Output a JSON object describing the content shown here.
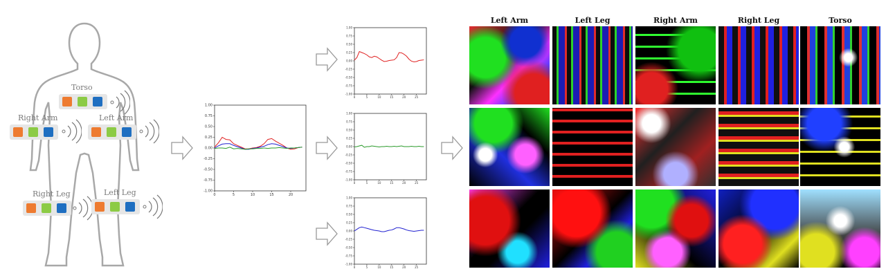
{
  "body_diagram": {
    "sensors": [
      {
        "name": "torso",
        "label": "Torso"
      },
      {
        "name": "right-arm",
        "label": "Right Arm"
      },
      {
        "name": "left-arm",
        "label": "Left Arm"
      },
      {
        "name": "right-leg",
        "label": "Right Leg"
      },
      {
        "name": "left-leg",
        "label": "Left Leg"
      }
    ],
    "channel_colors": [
      "#ee7b30",
      "#8ccb45",
      "#1f6fc1"
    ]
  },
  "combined_plot": {
    "y_ticks": [
      "1.00",
      "0.75",
      "0.50",
      "0.25",
      "0.00",
      "-0.25",
      "-0.50",
      "-0.75",
      "-1.00"
    ],
    "x_ticks": [
      "0",
      "5",
      "10",
      "15",
      "20"
    ]
  },
  "axis_plots": {
    "y_ticks": [
      "1.00",
      "0.75",
      "0.50",
      "0.25",
      "0.00",
      "-0.25",
      "-0.50",
      "-0.75",
      "-1.00"
    ],
    "x_ticks": [
      "0",
      "5",
      "10",
      "15",
      "20",
      "25"
    ]
  },
  "chart_data": [
    {
      "type": "line",
      "x": [
        0,
        1,
        2,
        3,
        4,
        5,
        6,
        7,
        8,
        9,
        10,
        11,
        12,
        13,
        14,
        15,
        16,
        17,
        18,
        19,
        20,
        21,
        22,
        23
      ],
      "ylim": [
        -1,
        1
      ],
      "xlim": [
        0,
        24
      ],
      "series": [
        {
          "color": "#e02020",
          "values": [
            0.02,
            0.12,
            0.25,
            0.2,
            0.19,
            0.1,
            0.06,
            0.02,
            -0.02,
            -0.02,
            0.0,
            0.01,
            0.04,
            0.1,
            0.2,
            0.22,
            0.16,
            0.11,
            0.06,
            0.0,
            -0.03,
            -0.02,
            0.01,
            0.02
          ]
        },
        {
          "color": "#2020d0",
          "values": [
            0.0,
            0.05,
            0.09,
            0.1,
            0.1,
            0.06,
            0.03,
            0.0,
            -0.03,
            -0.03,
            -0.01,
            0.0,
            0.02,
            0.04,
            0.08,
            0.1,
            0.09,
            0.06,
            0.03,
            0.0,
            -0.01,
            0.0,
            0.01,
            0.02
          ]
        },
        {
          "color": "#2a9a2a",
          "values": [
            -0.01,
            0.0,
            0.0,
            -0.01,
            0.02,
            -0.02,
            -0.01,
            -0.02,
            -0.03,
            -0.02,
            -0.02,
            -0.01,
            -0.01,
            0.0,
            -0.01,
            0.0,
            0.0,
            0.01,
            0.0,
            -0.01,
            0.0,
            0.0,
            0.01,
            0.02
          ]
        }
      ]
    },
    {
      "type": "line",
      "x": [
        0,
        1,
        2,
        3,
        4,
        5,
        6,
        7,
        8,
        9,
        10,
        11,
        12,
        13,
        14,
        15,
        16,
        17,
        18,
        19,
        20,
        21,
        22,
        23,
        24,
        25,
        26,
        27,
        28
      ],
      "ylim": [
        -1,
        1
      ],
      "xlim": [
        0,
        29
      ],
      "series": [
        {
          "color": "#e02020",
          "values": [
            0.02,
            0.1,
            0.28,
            0.25,
            0.22,
            0.18,
            0.12,
            0.1,
            0.14,
            0.12,
            0.07,
            0.02,
            -0.02,
            -0.01,
            0.01,
            0.02,
            0.03,
            0.1,
            0.25,
            0.24,
            0.2,
            0.14,
            0.05,
            -0.01,
            -0.03,
            -0.02,
            0.01,
            0.02,
            0.03
          ]
        }
      ]
    },
    {
      "type": "line",
      "x": [
        0,
        1,
        2,
        3,
        4,
        5,
        6,
        7,
        8,
        9,
        10,
        11,
        12,
        13,
        14,
        15,
        16,
        17,
        18,
        19,
        20,
        21,
        22,
        23,
        24,
        25,
        26,
        27,
        28
      ],
      "ylim": [
        -1,
        1
      ],
      "xlim": [
        0,
        29
      ],
      "series": [
        {
          "color": "#2a9a2a",
          "values": [
            -0.01,
            0.0,
            0.02,
            0.04,
            -0.02,
            0.0,
            0.0,
            0.02,
            0.01,
            0.0,
            -0.01,
            0.0,
            0.0,
            0.01,
            0.0,
            0.0,
            0.01,
            0.0,
            0.01,
            0.02,
            0.0,
            0.0,
            0.0,
            0.01,
            0.0,
            0.0,
            0.01,
            0.0,
            0.0
          ]
        }
      ]
    },
    {
      "type": "line",
      "x": [
        0,
        1,
        2,
        3,
        4,
        5,
        6,
        7,
        8,
        9,
        10,
        11,
        12,
        13,
        14,
        15,
        16,
        17,
        18,
        19,
        20,
        21,
        22,
        23,
        24,
        25,
        26,
        27,
        28
      ],
      "ylim": [
        -1,
        1
      ],
      "xlim": [
        0,
        29
      ],
      "series": [
        {
          "color": "#2020d0",
          "values": [
            0.0,
            0.05,
            0.1,
            0.12,
            0.1,
            0.08,
            0.06,
            0.04,
            0.02,
            0.01,
            0.0,
            -0.02,
            -0.02,
            0.0,
            0.02,
            0.03,
            0.06,
            0.1,
            0.1,
            0.08,
            0.06,
            0.03,
            0.01,
            0.0,
            -0.01,
            0.0,
            0.01,
            0.02,
            0.02
          ]
        }
      ]
    }
  ],
  "image_grid": {
    "columns": [
      "Left Arm",
      "Left Leg",
      "Right Arm",
      "Right Leg",
      "Torso"
    ]
  }
}
